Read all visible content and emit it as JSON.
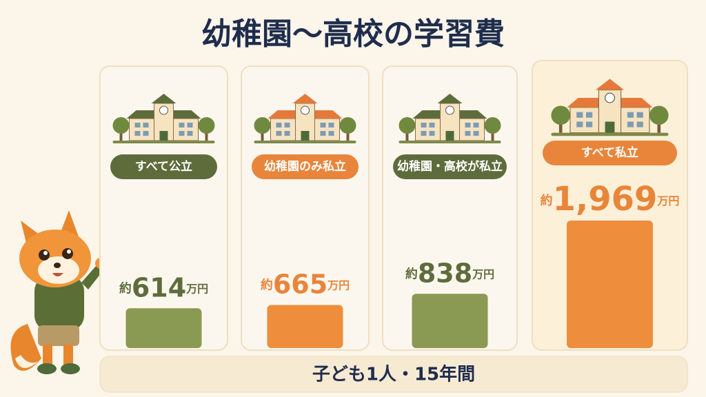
{
  "chart_data": {
    "type": "bar",
    "title": "幼稚園〜高校の学習費",
    "categories": [
      "すべて公立",
      "幼稚園のみ私立",
      "幼稚園・高校が私立",
      "すべて私立"
    ],
    "values": [
      614,
      665,
      838,
      1969
    ],
    "value_labels": [
      "614",
      "665",
      "838",
      "1,969"
    ],
    "value_prefix": "約",
    "value_unit": "万円",
    "colors": [
      "#8b9a52",
      "#ee8e3c",
      "#8b9a52",
      "#ee8e3c"
    ],
    "label_colors": [
      "#5e6c3c",
      "#e8853a",
      "#5e6c3c",
      "#e8853a"
    ],
    "note": "子ども1人・15年間"
  }
}
